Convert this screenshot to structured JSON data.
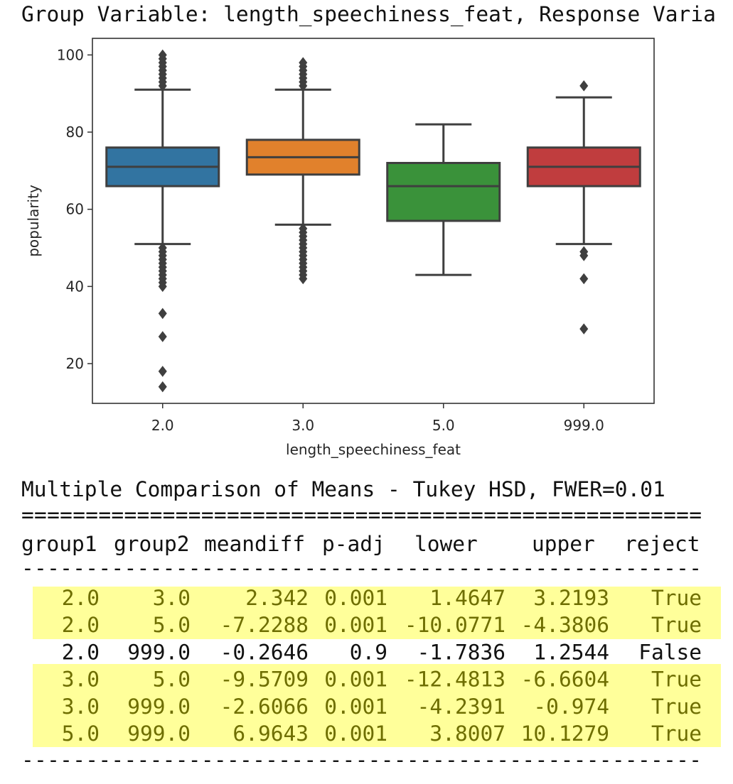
{
  "header": {
    "title": "Group Variable: length_speechiness_feat, Response Varia"
  },
  "chart_data": {
    "type": "box",
    "xlabel": "length_speechiness_feat",
    "ylabel": "popularity",
    "categories": [
      "2.0",
      "3.0",
      "5.0",
      "999.0"
    ],
    "ylim": [
      9.7,
      104.3
    ],
    "yticks": [
      20,
      40,
      60,
      80,
      100
    ],
    "boxes": [
      {
        "color": "#3274a1",
        "whisker_low": 51,
        "q1": 66,
        "median": 71,
        "q3": 76,
        "whisker_high": 91,
        "outliers": [
          92,
          93,
          94,
          95,
          96,
          97,
          98,
          99,
          100,
          50,
          49,
          48,
          47,
          46,
          45,
          44,
          43,
          42,
          41,
          40,
          33,
          27,
          18,
          14
        ]
      },
      {
        "color": "#e1812c",
        "whisker_low": 56,
        "q1": 69,
        "median": 73.5,
        "q3": 78,
        "whisker_high": 91,
        "outliers": [
          92,
          93,
          94,
          95,
          96,
          97,
          98,
          55,
          54,
          53,
          52,
          51,
          50,
          49,
          48,
          47,
          46,
          45,
          44,
          43,
          42
        ]
      },
      {
        "color": "#3a923a",
        "whisker_low": 43,
        "q1": 57,
        "median": 66,
        "q3": 72,
        "whisker_high": 82,
        "outliers": []
      },
      {
        "color": "#c03d3e",
        "whisker_low": 51,
        "q1": 66,
        "median": 71,
        "q3": 76,
        "whisker_high": 89,
        "outliers": [
          92,
          49,
          48,
          42,
          29
        ]
      }
    ]
  },
  "table": {
    "title": "Multiple Comparison of Means - Tukey HSD, FWER=0.01",
    "rule_top": "=====================================================",
    "columns": [
      "group1",
      "group2",
      "meandiff",
      "p-adj",
      "lower",
      "upper",
      "reject"
    ],
    "rule_mid": "-----------------------------------------------------",
    "rows": [
      [
        "2.0",
        "3.0",
        "2.342",
        "0.001",
        "1.4647",
        "3.2193",
        "True"
      ],
      [
        "2.0",
        "5.0",
        "-7.2288",
        "0.001",
        "-10.0771",
        "-4.3806",
        "True"
      ],
      [
        "2.0",
        "999.0",
        "-0.2646",
        "0.9",
        "-1.7836",
        "1.2544",
        "False"
      ],
      [
        "3.0",
        "5.0",
        "-9.5709",
        "0.001",
        "-12.4813",
        "-6.6604",
        "True"
      ],
      [
        "3.0",
        "999.0",
        "-2.6066",
        "0.001",
        "-4.2391",
        "-0.974",
        "True"
      ],
      [
        "5.0",
        "999.0",
        "6.9643",
        "0.001",
        "3.8007",
        "10.1279",
        "True"
      ]
    ],
    "rule_bottom": "-----------------------------------------------------"
  }
}
